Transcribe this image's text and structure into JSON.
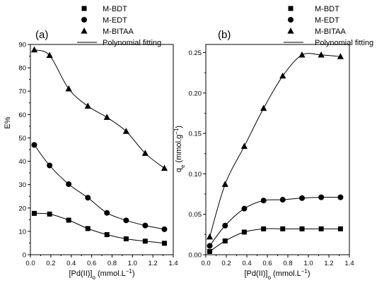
{
  "chart_data": [
    {
      "panel": "(a)",
      "type": "scatter",
      "xlabel": "[Pd(II)]",
      "xlabel_sub": "o",
      "xlabel_unit": " (mmol.L",
      "xlabel_sup": "−1",
      "xlabel_close": ")",
      "ylabel": "E%",
      "xlim": [
        0,
        1.4
      ],
      "ylim": [
        0,
        90
      ],
      "xticks": [
        "0.0",
        "0.2",
        "0.4",
        "0.6",
        "0.8",
        "1.0",
        "1.2",
        "1.4"
      ],
      "yticks": [
        "0",
        "10",
        "20",
        "30",
        "40",
        "50",
        "60",
        "70",
        "80",
        "90"
      ],
      "series": [
        {
          "name": "M-BDT",
          "marker": "square",
          "x": [
            0.038,
            0.188,
            0.375,
            0.563,
            0.75,
            0.938,
            1.125,
            1.313
          ],
          "y": [
            17.7,
            17.4,
            14.8,
            11.2,
            8.6,
            6.8,
            5.8,
            4.9
          ]
        },
        {
          "name": "M-EDT",
          "marker": "circle",
          "x": [
            0.038,
            0.188,
            0.375,
            0.563,
            0.75,
            0.938,
            1.125,
            1.313
          ],
          "y": [
            47.0,
            38.2,
            30.2,
            24.4,
            17.9,
            14.7,
            12.5,
            10.9
          ]
        },
        {
          "name": "M-BITAA",
          "marker": "triangle",
          "x": [
            0.038,
            0.188,
            0.375,
            0.563,
            0.75,
            0.938,
            1.125,
            1.313
          ],
          "y": [
            87.7,
            85.3,
            71.0,
            63.6,
            58.8,
            52.8,
            43.4,
            37.0
          ]
        }
      ],
      "fit_label": "Polynomial fitting"
    },
    {
      "panel": "(b)",
      "type": "scatter",
      "xlabel": "[Pd(II)]",
      "xlabel_sub": "o",
      "xlabel_unit": " (mmol.L",
      "xlabel_sup": "−1",
      "xlabel_close": ")",
      "ylabel": "q",
      "ylabel_sub": "e",
      "ylabel_unit": " (mmol.g",
      "ylabel_sup": "−1",
      "ylabel_close": ")",
      "xlim": [
        0,
        1.4
      ],
      "ylim": [
        0,
        0.26
      ],
      "xticks": [
        "0.0",
        "0.2",
        "0.4",
        "0.6",
        "0.8",
        "1.0",
        "1.2",
        "1.4"
      ],
      "yticks": [
        "0.00",
        "0.05",
        "0.10",
        "0.15",
        "0.20",
        "0.25"
      ],
      "series": [
        {
          "name": "M-BDT",
          "marker": "square",
          "x": [
            0.038,
            0.188,
            0.375,
            0.563,
            0.75,
            0.938,
            1.125,
            1.313
          ],
          "y": [
            0.004,
            0.017,
            0.028,
            0.032,
            0.032,
            0.032,
            0.032,
            0.032
          ]
        },
        {
          "name": "M-EDT",
          "marker": "circle",
          "x": [
            0.038,
            0.188,
            0.375,
            0.563,
            0.75,
            0.938,
            1.125,
            1.313
          ],
          "y": [
            0.011,
            0.036,
            0.057,
            0.067,
            0.068,
            0.07,
            0.071,
            0.071
          ]
        },
        {
          "name": "M-BITAA",
          "marker": "triangle",
          "x": [
            0.038,
            0.188,
            0.375,
            0.563,
            0.75,
            0.938,
            1.125,
            1.313
          ],
          "y": [
            0.022,
            0.087,
            0.134,
            0.181,
            0.221,
            0.247,
            0.247,
            0.245
          ]
        }
      ],
      "fit_label": "Polynomial fitting"
    }
  ]
}
